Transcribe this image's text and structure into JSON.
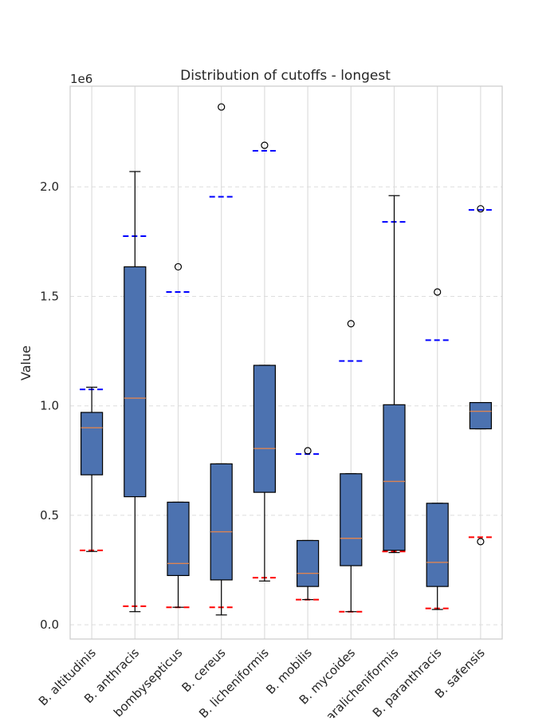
{
  "chart_data": {
    "type": "box",
    "title": "Distribution of cutoffs - longest",
    "xlabel": "",
    "ylabel": "Value",
    "y_scale_label": "1e6",
    "ylim": [
      -0.065,
      2.46
    ],
    "yticks": [
      0.0,
      0.5,
      1.0,
      1.5,
      2.0
    ],
    "ytick_labels": [
      "0.0",
      "0.5",
      "1.0",
      "1.5",
      "2.0"
    ],
    "grid": true,
    "categories": [
      "B. altitudinis",
      "B. anthracis",
      "B. bombysepticus",
      "B. cereus",
      "B. licheniformis",
      "B. mobilis",
      "B. mycoides",
      "B. paralicheniformis",
      "B. paranthracis",
      "B. safensis"
    ],
    "boxes": [
      {
        "whislo": 0.335,
        "q1": 0.685,
        "med": 0.9,
        "q3": 0.97,
        "whishi": 1.085,
        "fliers": []
      },
      {
        "whislo": 0.06,
        "q1": 0.585,
        "med": 1.035,
        "q3": 1.635,
        "whishi": 2.07,
        "fliers": []
      },
      {
        "whislo": 0.08,
        "q1": 0.225,
        "med": 0.28,
        "q3": 0.56,
        "whishi": 0.56,
        "fliers": [
          1.635
        ]
      },
      {
        "whislo": 0.045,
        "q1": 0.205,
        "med": 0.425,
        "q3": 0.735,
        "whishi": 0.735,
        "fliers": [
          2.365
        ]
      },
      {
        "whislo": 0.2,
        "q1": 0.605,
        "med": 0.805,
        "q3": 1.185,
        "whishi": 1.185,
        "fliers": [
          2.19
        ]
      },
      {
        "whislo": 0.115,
        "q1": 0.175,
        "med": 0.235,
        "q3": 0.385,
        "whishi": 0.385,
        "fliers": [
          0.795
        ]
      },
      {
        "whislo": 0.06,
        "q1": 0.27,
        "med": 0.395,
        "q3": 0.69,
        "whishi": 0.69,
        "fliers": [
          1.375
        ]
      },
      {
        "whislo": 0.33,
        "q1": 0.34,
        "med": 0.655,
        "q3": 1.005,
        "whishi": 1.96,
        "fliers": []
      },
      {
        "whislo": 0.07,
        "q1": 0.175,
        "med": 0.285,
        "q3": 0.555,
        "whishi": 0.555,
        "fliers": [
          1.52
        ]
      },
      {
        "whislo": 0.895,
        "q1": 0.895,
        "med": 0.975,
        "q3": 1.015,
        "whishi": 1.015,
        "fliers": [
          1.9,
          0.38
        ]
      }
    ],
    "upper_reference": [
      1.075,
      1.775,
      1.52,
      1.955,
      2.165,
      0.78,
      1.205,
      1.84,
      1.3,
      1.895
    ],
    "lower_reference": [
      0.34,
      0.085,
      0.08,
      0.08,
      0.215,
      0.115,
      0.06,
      0.335,
      0.075,
      0.4
    ],
    "colors": {
      "box_fill": "#4c72b0",
      "box_edge": "#000000",
      "median": "#dd8452",
      "upper_reference": "#0000ff",
      "lower_reference": "#ff0000",
      "grid": "#dddddd",
      "spine": "#cccccc"
    }
  }
}
